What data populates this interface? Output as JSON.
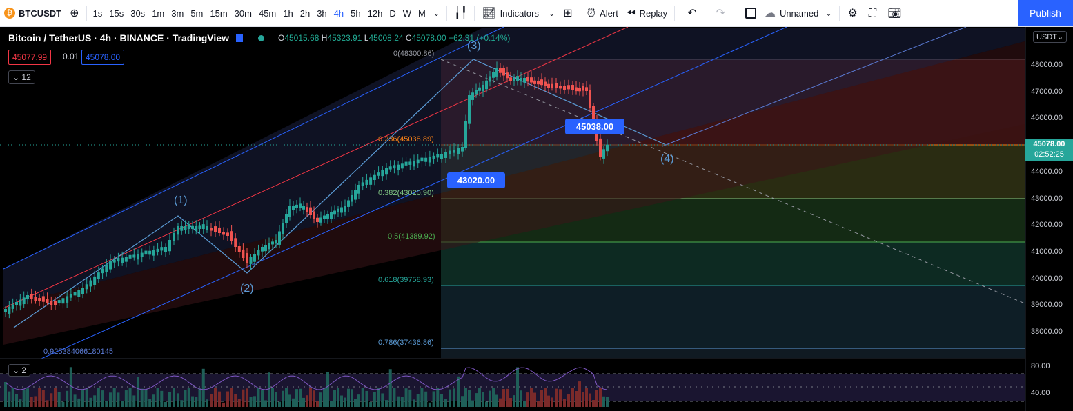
{
  "toolbar": {
    "symbol": "BTCUSDT",
    "timeframes": [
      "1s",
      "15s",
      "30s",
      "1m",
      "3m",
      "5m",
      "15m",
      "30m",
      "45m",
      "1h",
      "2h",
      "3h",
      "4h",
      "5h",
      "12h",
      "D",
      "W",
      "M"
    ],
    "active_timeframe": "4h",
    "indicators_label": "Indicators",
    "alert_label": "Alert",
    "replay_label": "Replay",
    "layout_name": "Unnamed",
    "publish_label": "Publish"
  },
  "legend": {
    "title": "Bitcoin / TetherUS · 4h · BINANCE · TradingView",
    "open_label": "O",
    "open": "45015.68",
    "high_label": "H",
    "high": "45323.91",
    "low_label": "L",
    "low": "45008.24",
    "close_label": "C",
    "close": "45078.00",
    "change": "+62.31 (+0.14%)"
  },
  "order": {
    "sell": "45077.99",
    "spread": "0.01",
    "buy": "45078.00"
  },
  "collapse_count": "12",
  "volume_pane_count": "2",
  "currency": "USDT",
  "price_axis": [
    "48000.00",
    "47000.00",
    "46000.00",
    "45000.00",
    "44000.00",
    "43000.00",
    "42000.00",
    "41000.00",
    "40000.00",
    "39000.00",
    "38000.00"
  ],
  "osc_axis": [
    "80.00",
    "40.00"
  ],
  "current_price": {
    "value": "45078.00",
    "countdown": "02:52:25"
  },
  "callouts": {
    "top": "45038.00",
    "bottom": "43020.00"
  },
  "fib_levels": [
    {
      "label": "0(48300.86)"
    },
    {
      "label": "0.236(45038.89)"
    },
    {
      "label": "0.382(43020.90)"
    },
    {
      "label": "0.5(41389.92)"
    },
    {
      "label": "0.618(39758.93)"
    },
    {
      "label": "0.786(37436.86)"
    }
  ],
  "waves": [
    "(1)",
    "(2)",
    "(3)",
    "(4)"
  ],
  "stray_number": "0.925384066180145",
  "colors": {
    "up": "#26a69a",
    "down": "#ef5350",
    "accent": "#2962ff"
  }
}
